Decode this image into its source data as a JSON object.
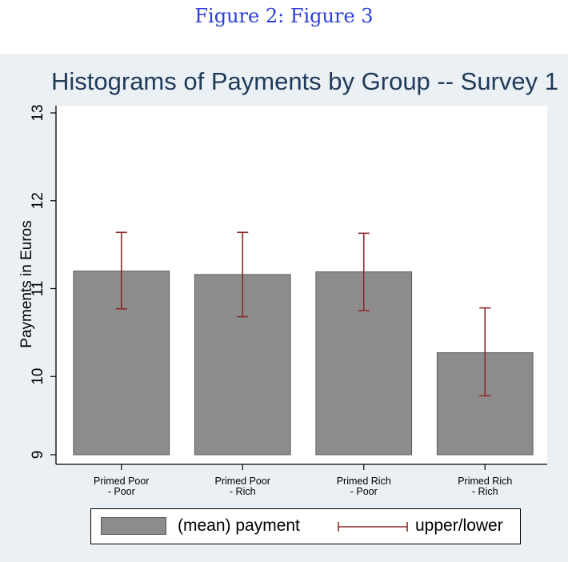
{
  "caption": "Figure 2: Figure 3",
  "colors": {
    "bar_fill": "#8c8c8c",
    "bar_stroke": "#5a5a5a",
    "error_bar": "#8b2a2a",
    "title": "#1f3a5a",
    "caption": "#2a3fd6",
    "frame": "#eaf0f4"
  },
  "chart_data": {
    "type": "bar",
    "title": "Histograms of Payments by Group -- Survey 1",
    "xlabel": "",
    "ylabel": "Payments in Euros",
    "ylim": [
      9,
      13
    ],
    "yticks": [
      9,
      10,
      11,
      12,
      13
    ],
    "grid": false,
    "legend_position": "bottom",
    "categories": [
      [
        "Primed Poor",
        "- Poor"
      ],
      [
        "Primed Poor",
        "- Rich"
      ],
      [
        "Primed Rich",
        "- Poor"
      ],
      [
        "Primed Rich",
        "- Rich"
      ]
    ],
    "series": [
      {
        "name": "(mean) payment",
        "values": [
          11.2,
          11.16,
          11.19,
          10.27
        ]
      },
      {
        "name": "upper/lower",
        "lower": [
          10.77,
          10.68,
          10.75,
          9.78
        ],
        "upper": [
          11.64,
          11.64,
          11.63,
          10.78
        ]
      }
    ]
  }
}
